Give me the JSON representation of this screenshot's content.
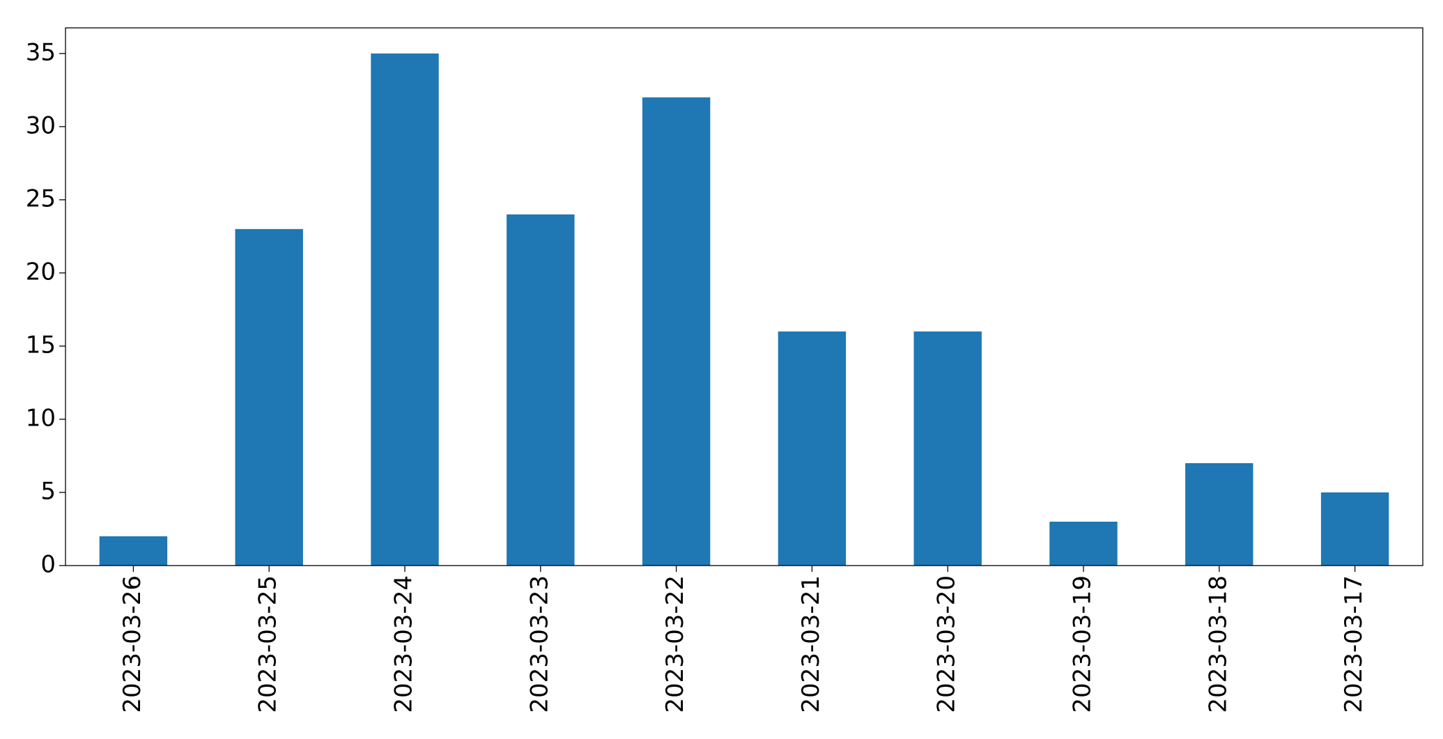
{
  "chart_data": {
    "type": "bar",
    "categories": [
      "2023-03-26",
      "2023-03-25",
      "2023-03-24",
      "2023-03-23",
      "2023-03-22",
      "2023-03-21",
      "2023-03-20",
      "2023-03-19",
      "2023-03-18",
      "2023-03-17"
    ],
    "values": [
      2,
      23,
      35,
      24,
      32,
      16,
      16,
      3,
      7,
      5
    ],
    "color": "#1f77b4",
    "ylim": [
      0,
      36.75
    ],
    "yticks": [
      0,
      5,
      10,
      15,
      20,
      25,
      30,
      35
    ],
    "grid": false
  }
}
